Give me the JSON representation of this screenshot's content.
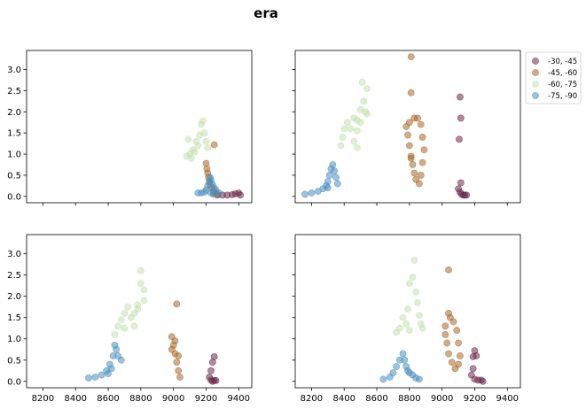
{
  "chart_data": {
    "type": "scatter",
    "title": "era",
    "legend": {
      "placement": "right of top-right panel",
      "entries": [
        {
          "label": "-30, -45",
          "color": "#6b2a4a"
        },
        {
          "label": "-45, -60",
          "color": "#a8692a"
        },
        {
          "label": "-60, -75",
          "color": "#c4e0b0"
        },
        {
          "label": "-75, -90",
          "color": "#4a8fc0"
        }
      ]
    },
    "axes": {
      "xlim": [
        8100,
        9480
      ],
      "ylim": [
        -0.15,
        3.45
      ],
      "xticks": [
        8200,
        8400,
        8600,
        8800,
        9000,
        9200,
        9400
      ],
      "yticks": [
        0.0,
        0.5,
        1.0,
        1.5,
        2.0,
        2.5,
        3.0
      ],
      "xtick_labels": [
        "8200",
        "8400",
        "8600",
        "8800",
        "9000",
        "9200",
        "9400"
      ],
      "ytick_labels": [
        "0.0",
        "0.5",
        "1.0",
        "1.5",
        "2.0",
        "2.5",
        "3.0"
      ],
      "shared_x": true,
      "shared_y": true
    },
    "panels": [
      {
        "series": [
          {
            "name": "-30, -45",
            "points": [
              [
                9270,
                0.03
              ],
              [
                9300,
                0.03
              ],
              [
                9330,
                0.03
              ],
              [
                9360,
                0.04
              ],
              [
                9380,
                0.06
              ],
              [
                9400,
                0.08
              ],
              [
                9410,
                0.03
              ]
            ]
          },
          {
            "name": "-45, -60",
            "points": [
              [
                9200,
                0.78
              ],
              [
                9205,
                0.65
              ],
              [
                9210,
                0.55
              ],
              [
                9215,
                0.45
              ],
              [
                9220,
                0.35
              ],
              [
                9225,
                0.28
              ],
              [
                9235,
                0.2
              ],
              [
                9245,
                0.13
              ],
              [
                9255,
                0.08
              ],
              [
                9265,
                0.05
              ],
              [
                9250,
                1.22
              ]
            ]
          },
          {
            "name": "-60, -75",
            "points": [
              [
                9080,
                0.95
              ],
              [
                9100,
                1.0
              ],
              [
                9120,
                1.1
              ],
              [
                9140,
                1.3
              ],
              [
                9160,
                1.45
              ],
              [
                9170,
                1.7
              ],
              [
                9180,
                1.78
              ],
              [
                9190,
                1.5
              ],
              [
                9200,
                1.3
              ],
              [
                9210,
                1.15
              ],
              [
                9090,
                1.35
              ],
              [
                9110,
                0.9
              ],
              [
                9130,
                1.05
              ],
              [
                9150,
                1.2
              ]
            ]
          },
          {
            "name": "-75, -90",
            "points": [
              [
                9150,
                0.08
              ],
              [
                9170,
                0.08
              ],
              [
                9190,
                0.1
              ],
              [
                9200,
                0.15
              ],
              [
                9210,
                0.25
              ],
              [
                9220,
                0.35
              ],
              [
                9225,
                0.45
              ],
              [
                9230,
                0.38
              ],
              [
                9240,
                0.28
              ],
              [
                9250,
                0.2
              ],
              [
                9260,
                0.15
              ],
              [
                9280,
                0.08
              ],
              [
                9230,
                0.08
              ],
              [
                9245,
                0.05
              ]
            ]
          }
        ]
      },
      {
        "series": [
          {
            "name": "-30, -45",
            "points": [
              [
                9110,
                2.35
              ],
              [
                9115,
                1.85
              ],
              [
                9105,
                1.35
              ],
              [
                9115,
                0.32
              ],
              [
                9100,
                0.18
              ],
              [
                9110,
                0.1
              ],
              [
                9120,
                0.05
              ],
              [
                9130,
                0.03
              ],
              [
                9140,
                0.03
              ],
              [
                9150,
                0.03
              ]
            ]
          },
          {
            "name": "-45, -60",
            "points": [
              [
                8810,
                3.3
              ],
              [
                8810,
                2.45
              ],
              [
                8780,
                1.65
              ],
              [
                8790,
                1.45
              ],
              [
                8800,
                1.2
              ],
              [
                8810,
                0.95
              ],
              [
                8820,
                0.75
              ],
              [
                8830,
                0.55
              ],
              [
                8840,
                0.4
              ],
              [
                8860,
                0.3
              ],
              [
                8870,
                0.5
              ],
              [
                8880,
                0.8
              ],
              [
                8890,
                1.1
              ],
              [
                8880,
                1.4
              ],
              [
                8870,
                1.7
              ],
              [
                8850,
                1.85
              ],
              [
                8830,
                1.85
              ],
              [
                8800,
                1.75
              ],
              [
                8810,
                0.9
              ]
            ]
          },
          {
            "name": "-60, -75",
            "points": [
              [
                8380,
                1.2
              ],
              [
                8390,
                1.4
              ],
              [
                8400,
                1.6
              ],
              [
                8420,
                1.75
              ],
              [
                8440,
                1.6
              ],
              [
                8460,
                1.3
              ],
              [
                8480,
                1.15
              ],
              [
                8480,
                1.55
              ],
              [
                8480,
                1.8
              ],
              [
                8500,
                2.05
              ],
              [
                8510,
                2.7
              ],
              [
                8520,
                2.25
              ],
              [
                8530,
                2.0
              ],
              [
                8540,
                2.55
              ],
              [
                8540,
                1.95
              ],
              [
                8500,
                1.75
              ],
              [
                8460,
                1.85
              ]
            ]
          },
          {
            "name": "-75, -90",
            "points": [
              [
                8160,
                0.05
              ],
              [
                8200,
                0.08
              ],
              [
                8240,
                0.12
              ],
              [
                8270,
                0.18
              ],
              [
                8290,
                0.25
              ],
              [
                8300,
                0.35
              ],
              [
                8310,
                0.5
              ],
              [
                8320,
                0.65
              ],
              [
                8330,
                0.75
              ],
              [
                8340,
                0.6
              ],
              [
                8350,
                0.45
              ],
              [
                8360,
                0.3
              ],
              [
                8300,
                0.2
              ]
            ]
          }
        ]
      },
      {
        "series": [
          {
            "name": "-30, -45",
            "points": [
              [
                9250,
                0.58
              ],
              [
                9240,
                0.45
              ],
              [
                9230,
                0.25
              ],
              [
                9220,
                0.1
              ],
              [
                9230,
                0.03
              ],
              [
                9250,
                0.02
              ],
              [
                9260,
                0.02
              ],
              [
                9240,
                0.0
              ]
            ]
          },
          {
            "name": "-45, -60",
            "points": [
              [
                9020,
                1.82
              ],
              [
                8990,
                1.05
              ],
              [
                9000,
                0.85
              ],
              [
                9010,
                0.65
              ],
              [
                9020,
                0.45
              ],
              [
                9030,
                0.25
              ],
              [
                9040,
                0.1
              ],
              [
                9030,
                0.6
              ],
              [
                9010,
                0.95
              ],
              [
                8990,
                0.75
              ]
            ]
          },
          {
            "name": "-60, -75",
            "points": [
              [
                8640,
                1.1
              ],
              [
                8660,
                1.3
              ],
              [
                8680,
                1.45
              ],
              [
                8700,
                1.6
              ],
              [
                8720,
                1.75
              ],
              [
                8740,
                1.5
              ],
              [
                8760,
                1.3
              ],
              [
                8760,
                1.6
              ],
              [
                8780,
                1.8
              ],
              [
                8800,
                2.3
              ],
              [
                8800,
                2.6
              ],
              [
                8820,
                2.15
              ],
              [
                8820,
                1.9
              ],
              [
                8780,
                1.7
              ],
              [
                8700,
                1.25
              ]
            ]
          },
          {
            "name": "-75, -90",
            "points": [
              [
                8480,
                0.08
              ],
              [
                8520,
                0.1
              ],
              [
                8560,
                0.15
              ],
              [
                8590,
                0.25
              ],
              [
                8610,
                0.4
              ],
              [
                8630,
                0.6
              ],
              [
                8640,
                0.85
              ],
              [
                8650,
                0.75
              ],
              [
                8660,
                0.6
              ],
              [
                8680,
                0.5
              ],
              [
                8620,
                0.3
              ],
              [
                8600,
                0.18
              ]
            ]
          }
        ]
      },
      {
        "series": [
          {
            "name": "-30, -45",
            "points": [
              [
                9190,
                0.58
              ],
              [
                9200,
                0.72
              ],
              [
                9210,
                0.6
              ],
              [
                9190,
                0.3
              ],
              [
                9180,
                0.15
              ],
              [
                9200,
                0.05
              ],
              [
                9220,
                0.03
              ],
              [
                9240,
                0.03
              ],
              [
                9250,
                0.0
              ]
            ]
          },
          {
            "name": "-45, -60",
            "points": [
              [
                9040,
                2.62
              ],
              [
                9040,
                1.6
              ],
              [
                9020,
                1.3
              ],
              [
                9020,
                1.1
              ],
              [
                9030,
                0.9
              ],
              [
                9040,
                0.65
              ],
              [
                9060,
                0.45
              ],
              [
                9080,
                0.3
              ],
              [
                9100,
                0.4
              ],
              [
                9110,
                0.6
              ],
              [
                9100,
                0.9
              ],
              [
                9090,
                1.2
              ],
              [
                9070,
                1.4
              ],
              [
                9050,
                1.5
              ]
            ]
          },
          {
            "name": "-60, -75",
            "points": [
              [
                8720,
                1.15
              ],
              [
                8740,
                1.25
              ],
              [
                8760,
                1.5
              ],
              [
                8780,
                1.35
              ],
              [
                8790,
                1.7
              ],
              [
                8800,
                2.3
              ],
              [
                8820,
                2.45
              ],
              [
                8830,
                2.85
              ],
              [
                8840,
                2.1
              ],
              [
                8850,
                1.85
              ],
              [
                8860,
                1.55
              ],
              [
                8870,
                1.35
              ],
              [
                8880,
                1.25
              ],
              [
                8800,
                1.2
              ]
            ]
          },
          {
            "name": "-75, -90",
            "points": [
              [
                8640,
                0.05
              ],
              [
                8680,
                0.1
              ],
              [
                8700,
                0.2
              ],
              [
                8720,
                0.35
              ],
              [
                8740,
                0.5
              ],
              [
                8760,
                0.65
              ],
              [
                8770,
                0.5
              ],
              [
                8780,
                0.35
              ],
              [
                8790,
                0.25
              ],
              [
                8800,
                0.2
              ],
              [
                8820,
                0.15
              ],
              [
                8840,
                0.08
              ],
              [
                8860,
                0.05
              ]
            ]
          }
        ]
      }
    ]
  }
}
